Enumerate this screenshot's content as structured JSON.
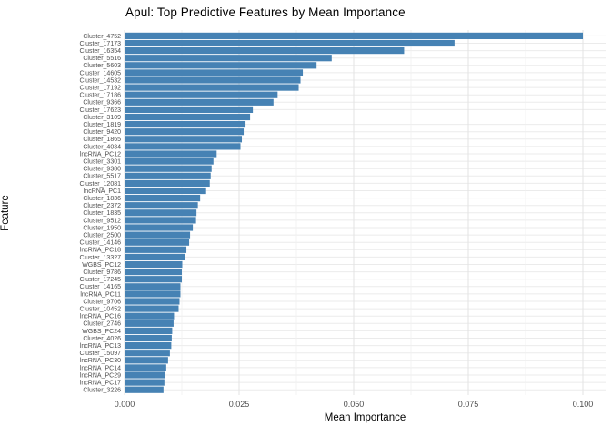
{
  "chart_data": {
    "type": "bar",
    "orientation": "horizontal",
    "title": "Apul: Top Predictive Features by Mean Importance",
    "xlabel": "Mean Importance",
    "ylabel": "Feature",
    "xlim": [
      0,
      0.105
    ],
    "x_ticks": [
      0,
      0.025,
      0.05,
      0.075,
      0.1
    ],
    "x_tick_labels": [
      "0.000",
      "0.025",
      "0.050",
      "0.075",
      "0.100"
    ],
    "x_minor_ticks": [
      0.0125,
      0.0375,
      0.0625,
      0.0875
    ],
    "grid": true,
    "legend": "none",
    "bar_color": "#4682B4",
    "categories": [
      "Cluster_4752",
      "Cluster_17173",
      "Cluster_16354",
      "Cluster_5516",
      "Cluster_5603",
      "Cluster_14605",
      "Cluster_14532",
      "Cluster_17192",
      "Cluster_17186",
      "Cluster_9366",
      "Cluster_17623",
      "Cluster_3109",
      "Cluster_1819",
      "Cluster_9420",
      "Cluster_1865",
      "Cluster_4034",
      "lncRNA_PC12",
      "Cluster_3301",
      "Cluster_9380",
      "Cluster_5517",
      "Cluster_12081",
      "lncRNA_PC1",
      "Cluster_1836",
      "Cluster_2372",
      "Cluster_1835",
      "Cluster_9512",
      "Cluster_1950",
      "Cluster_2500",
      "Cluster_14146",
      "lncRNA_PC18",
      "Cluster_13327",
      "WGBS_PC12",
      "Cluster_9786",
      "Cluster_17245",
      "Cluster_14165",
      "lncRNA_PC11",
      "Cluster_9706",
      "Cluster_10452",
      "lncRNA_PC16",
      "Cluster_2746",
      "WGBS_PC24",
      "Cluster_4026",
      "lncRNA_PC13",
      "Cluster_15097",
      "lncRNA_PC30",
      "lncRNA_PC14",
      "lncRNA_PC29",
      "lncRNA_PC17",
      "Cluster_3226"
    ],
    "values": [
      0.1,
      0.072,
      0.061,
      0.0452,
      0.0419,
      0.0389,
      0.0384,
      0.038,
      0.0334,
      0.0325,
      0.028,
      0.0274,
      0.0264,
      0.026,
      0.0256,
      0.0253,
      0.0201,
      0.0194,
      0.019,
      0.0188,
      0.0186,
      0.0178,
      0.0165,
      0.016,
      0.0157,
      0.0156,
      0.0149,
      0.0143,
      0.0141,
      0.0135,
      0.0132,
      0.0126,
      0.0125,
      0.0125,
      0.0122,
      0.0122,
      0.012,
      0.0118,
      0.0108,
      0.0107,
      0.0104,
      0.0103,
      0.0102,
      0.0099,
      0.0095,
      0.0091,
      0.0089,
      0.0087,
      0.0085
    ]
  },
  "colors": {
    "bar": "#4682B4",
    "grid_major": "#e3e3e3",
    "grid_minor": "#f0f0f0",
    "grid_row": "#ebebeb",
    "tick_label": "#4d4d4d",
    "background": "#ffffff"
  }
}
